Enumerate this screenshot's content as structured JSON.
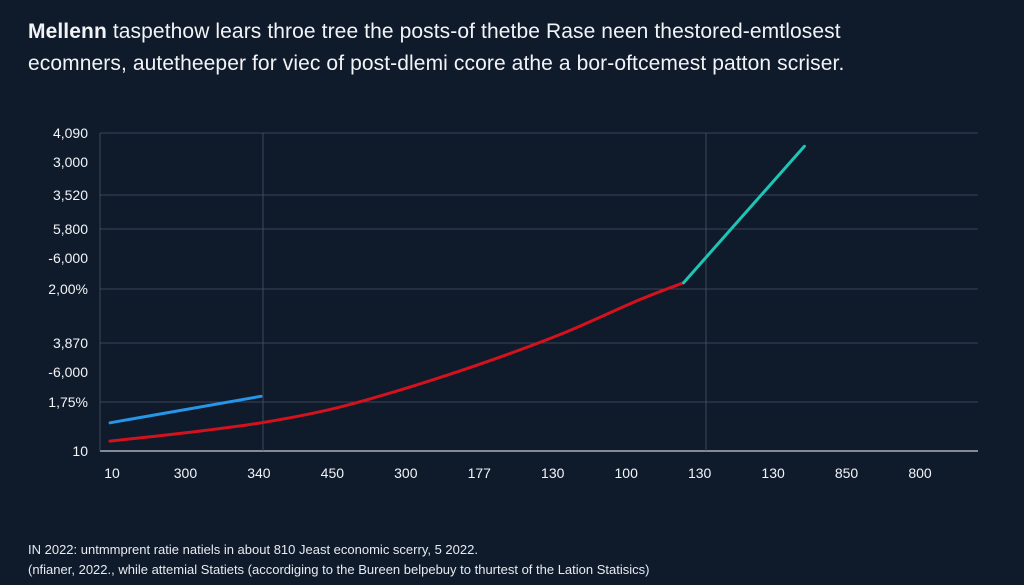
{
  "title": {
    "bold": "Mellenn",
    "line1_rest": " taspethow lears throe tree the posts-of thetbe Rase neen thestored-emtlosest",
    "line2": "ecomners, autetheeper for viec of post-dlemi ccore athe a bor-oftcemest patton scriser."
  },
  "footnote": {
    "line1": "IN 2022: untmmprent ratie natiels in about 810 Jeast economic scerry, 5 2022.",
    "line2": "(nfianer, 2022., while attemial Statiets (accordiging to the Bureen belpebuy to thurtest of the Lation Statisics)"
  },
  "chart_data": {
    "type": "line",
    "title": "",
    "xlabel": "",
    "ylabel": "",
    "grid": true,
    "x_tick_labels": [
      "10",
      "300",
      "340",
      "450",
      "300",
      "177",
      "130",
      "100",
      "130",
      "130",
      "850",
      "800"
    ],
    "y_tick_labels": [
      "4,090",
      "3,000",
      "3,520",
      "5,800",
      "-6,000",
      "2,00%",
      "3,870",
      "-6,000",
      "1,75%",
      "10"
    ],
    "x_range": [
      0,
      11.5
    ],
    "y_range": [
      0,
      9.6
    ],
    "series": [
      {
        "name": "blue-series",
        "color": "#2596e8",
        "x": [
          0,
          2
        ],
        "y": [
          0.85,
          1.65
        ]
      },
      {
        "name": "red-series",
        "color": "#d3121e",
        "x": [
          0,
          1,
          2,
          3,
          4,
          5,
          6,
          7,
          7.6
        ],
        "y": [
          0.3,
          0.55,
          0.85,
          1.3,
          1.95,
          2.7,
          3.55,
          4.55,
          5.08
        ]
      },
      {
        "name": "teal-series",
        "color": "#1ec4b4",
        "x": [
          7.6,
          9.2
        ],
        "y": [
          5.08,
          9.2
        ]
      }
    ]
  }
}
